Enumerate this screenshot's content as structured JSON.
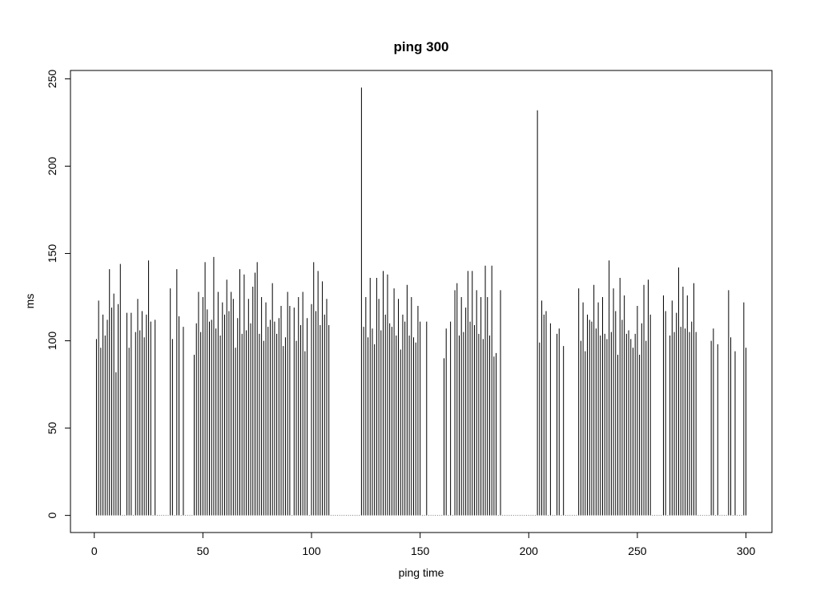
{
  "chart_data": {
    "type": "spike",
    "title": "ping 300",
    "x_label": "ping time",
    "y_label": "ms",
    "color": "#000000",
    "x": [
      1,
      2,
      3,
      4,
      5,
      6,
      7,
      8,
      9,
      10,
      11,
      12,
      13,
      14,
      15,
      16,
      17,
      18,
      19,
      20,
      21,
      22,
      23,
      24,
      25,
      26,
      27,
      28,
      29,
      30,
      31,
      32,
      33,
      34,
      35,
      36,
      37,
      38,
      39,
      40,
      41,
      42,
      43,
      44,
      45,
      46,
      47,
      48,
      49,
      50,
      51,
      52,
      53,
      54,
      55,
      56,
      57,
      58,
      59,
      60,
      61,
      62,
      63,
      64,
      65,
      66,
      67,
      68,
      69,
      70,
      71,
      72,
      73,
      74,
      75,
      76,
      77,
      78,
      79,
      80,
      81,
      82,
      83,
      84,
      85,
      86,
      87,
      88,
      89,
      90,
      91,
      92,
      93,
      94,
      95,
      96,
      97,
      98,
      99,
      100,
      101,
      102,
      103,
      104,
      105,
      106,
      107,
      108,
      109,
      110,
      111,
      112,
      113,
      114,
      115,
      116,
      117,
      118,
      119,
      120,
      121,
      122,
      123,
      124,
      125,
      126,
      127,
      128,
      129,
      130,
      131,
      132,
      133,
      134,
      135,
      136,
      137,
      138,
      139,
      140,
      141,
      142,
      143,
      144,
      145,
      146,
      147,
      148,
      149,
      150,
      151,
      152,
      153,
      154,
      155,
      156,
      157,
      158,
      159,
      160,
      161,
      162,
      163,
      164,
      165,
      166,
      167,
      168,
      169,
      170,
      171,
      172,
      173,
      174,
      175,
      176,
      177,
      178,
      179,
      180,
      181,
      182,
      183,
      184,
      185,
      186,
      187,
      188,
      189,
      190,
      191,
      192,
      193,
      194,
      195,
      196,
      197,
      198,
      199,
      200,
      201,
      202,
      203,
      204,
      205,
      206,
      207,
      208,
      209,
      210,
      211,
      212,
      213,
      214,
      215,
      216,
      217,
      218,
      219,
      220,
      221,
      222,
      223,
      224,
      225,
      226,
      227,
      228,
      229,
      230,
      231,
      232,
      233,
      234,
      235,
      236,
      237,
      238,
      239,
      240,
      241,
      242,
      243,
      244,
      245,
      246,
      247,
      248,
      249,
      250,
      251,
      252,
      253,
      254,
      255,
      256,
      257,
      258,
      259,
      260,
      261,
      262,
      263,
      264,
      265,
      266,
      267,
      268,
      269,
      270,
      271,
      272,
      273,
      274,
      275,
      276,
      277,
      278,
      279,
      280,
      281,
      282,
      283,
      284,
      285,
      286,
      287,
      288,
      289,
      290,
      291,
      292,
      293,
      294,
      295,
      296,
      297,
      298,
      299,
      300
    ],
    "values": [
      101,
      123,
      96,
      115,
      103,
      112,
      141,
      119,
      127,
      82,
      121,
      144,
      0,
      0,
      116,
      96,
      116,
      0,
      105,
      124,
      106,
      117,
      102,
      115,
      146,
      111,
      0,
      112,
      0,
      0,
      0,
      0,
      0,
      0,
      130,
      101,
      0,
      141,
      114,
      0,
      108,
      0,
      0,
      0,
      0,
      92,
      110,
      128,
      105,
      125,
      145,
      118,
      111,
      112,
      148,
      107,
      128,
      103,
      122,
      115,
      135,
      117,
      128,
      124,
      96,
      113,
      141,
      104,
      138,
      106,
      124,
      110,
      131,
      139,
      145,
      104,
      125,
      100,
      122,
      108,
      112,
      133,
      111,
      104,
      113,
      120,
      97,
      102,
      128,
      120,
      0,
      119,
      100,
      125,
      109,
      128,
      94,
      113,
      0,
      121,
      145,
      117,
      140,
      109,
      134,
      115,
      124,
      109,
      0,
      0,
      0,
      0,
      0,
      0,
      0,
      0,
      0,
      0,
      0,
      0,
      0,
      0,
      245,
      108,
      125,
      102,
      136,
      107,
      98,
      136,
      124,
      106,
      140,
      115,
      138,
      110,
      108,
      130,
      103,
      124,
      95,
      115,
      111,
      132,
      103,
      125,
      102,
      99,
      120,
      111,
      0,
      0,
      111,
      0,
      0,
      0,
      0,
      0,
      0,
      0,
      90,
      107,
      0,
      111,
      0,
      129,
      133,
      103,
      125,
      105,
      119,
      140,
      111,
      140,
      109,
      129,
      104,
      125,
      101,
      143,
      125,
      103,
      143,
      91,
      93,
      0,
      129,
      0,
      0,
      0,
      0,
      0,
      0,
      0,
      0,
      0,
      0,
      0,
      0,
      0,
      0,
      0,
      0,
      232,
      99,
      123,
      115,
      117,
      0,
      110,
      0,
      0,
      104,
      107,
      0,
      97,
      0,
      0,
      0,
      0,
      0,
      0,
      130,
      100,
      122,
      94,
      115,
      112,
      111,
      132,
      107,
      122,
      103,
      125,
      104,
      101,
      146,
      105,
      130,
      117,
      92,
      136,
      112,
      126,
      104,
      106,
      101,
      96,
      104,
      120,
      92,
      110,
      132,
      100,
      135,
      115,
      0,
      0,
      0,
      0,
      0,
      126,
      117,
      0,
      103,
      123,
      105,
      116,
      142,
      108,
      131,
      107,
      126,
      105,
      111,
      133,
      105,
      0,
      0,
      0,
      0,
      0,
      0,
      100,
      107,
      0,
      98,
      0,
      0,
      0,
      0,
      129,
      102,
      0,
      94,
      0,
      0,
      0,
      122,
      96
    ],
    "xlim": [
      -10.96,
      311.96
    ],
    "ylim": [
      -9.8,
      254.8
    ],
    "xticks": [
      0,
      50,
      100,
      150,
      200,
      250,
      300
    ],
    "yticks": [
      0,
      50,
      100,
      150,
      200,
      250
    ]
  }
}
